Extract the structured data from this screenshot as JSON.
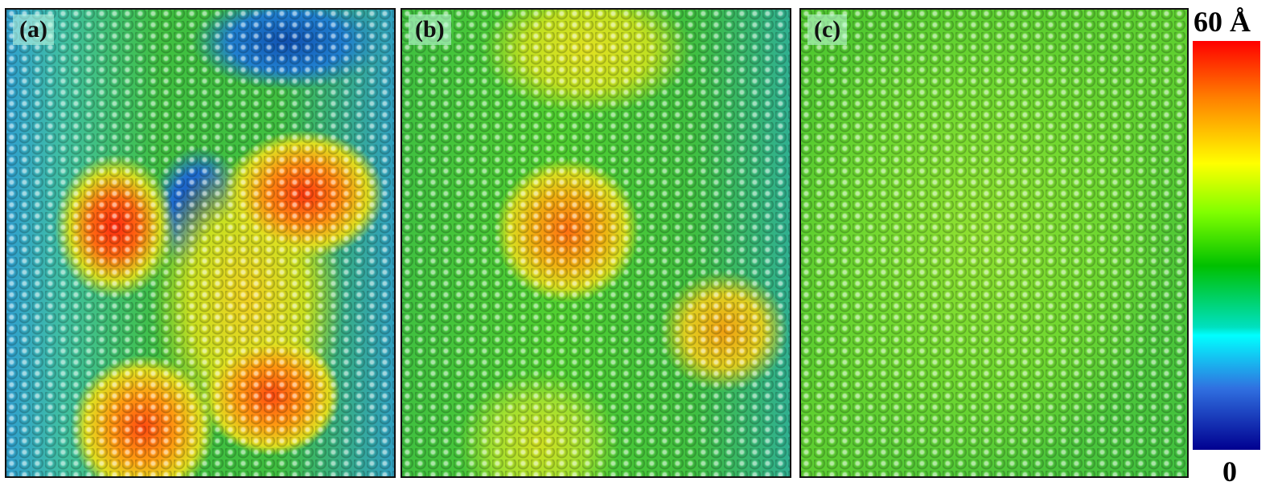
{
  "panels": [
    {
      "label": "(a)"
    },
    {
      "label": "(b)"
    },
    {
      "label": "(c)"
    }
  ],
  "colorbar": {
    "max_label": "60 Å",
    "min_label": "0",
    "colors": [
      "#ff0000",
      "#ff8000",
      "#ffff00",
      "#80ff00",
      "#00c000",
      "#00ffff",
      "#3070e0",
      "#000090"
    ]
  }
}
